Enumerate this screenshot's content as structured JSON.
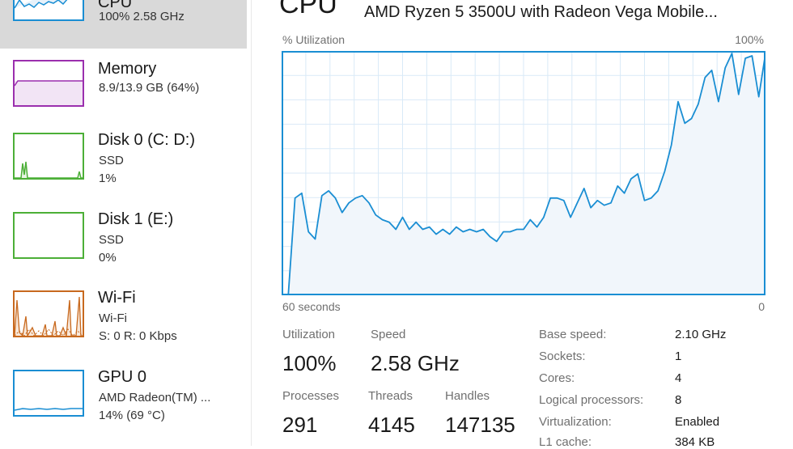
{
  "sidebar": {
    "items": [
      {
        "title": "CPU",
        "line1": "100%  2.58 GHz",
        "line2": "",
        "color": "#1a8ed3",
        "active": true
      },
      {
        "title": "Memory",
        "line1": "8.9/13.9 GB (64%)",
        "line2": "",
        "color": "#9b2fae"
      },
      {
        "title": "Disk 0 (C: D:)",
        "line1": "SSD",
        "line2": "1%",
        "color": "#4caf37"
      },
      {
        "title": "Disk 1 (E:)",
        "line1": "SSD",
        "line2": "0%",
        "color": "#4caf37"
      },
      {
        "title": "Wi-Fi",
        "line1": "Wi-Fi",
        "line2_s": "S: 0",
        "line2_r": "R: 0 Kbps",
        "color": "#c8691e"
      },
      {
        "title": "GPU 0",
        "line1": "AMD Radeon(TM) ...",
        "line2": "14%  (69 °C)",
        "color": "#1a8ed3"
      }
    ]
  },
  "header": {
    "title": "CPU",
    "model": "AMD Ryzen 5 3500U with Radeon Vega Mobile..."
  },
  "graph": {
    "top_left_label": "% Utilization",
    "top_right_label": "100%",
    "bottom_left_label": "60 seconds",
    "bottom_right_label": "0",
    "line_color": "#1a8ed3",
    "fill_color": "#f1f6fb",
    "grid_color": "#d9eaf7",
    "values": [
      0,
      0,
      40,
      42,
      26,
      23,
      41,
      43,
      40,
      34,
      38,
      40,
      41,
      38,
      33,
      31,
      30,
      27,
      32,
      27,
      30,
      27,
      28,
      25,
      27,
      25,
      28,
      26,
      27,
      26,
      27,
      24,
      22,
      26,
      26,
      27,
      27,
      31,
      28,
      32,
      40,
      40,
      39,
      32,
      38,
      44,
      36,
      39,
      37,
      38,
      45,
      42,
      48,
      50,
      39,
      40,
      43,
      51,
      62,
      80,
      71,
      73,
      79,
      90,
      93,
      80,
      94,
      100,
      83,
      98,
      99,
      82,
      100
    ]
  },
  "stats": {
    "utilization_label": "Utilization",
    "utilization_value": "100%",
    "speed_label": "Speed",
    "speed_value": "2.58 GHz",
    "processes_label": "Processes",
    "processes_value": "291",
    "threads_label": "Threads",
    "threads_value": "4145",
    "handles_label": "Handles",
    "handles_value": "147135"
  },
  "specs": [
    {
      "label": "Base speed:",
      "value": "2.10 GHz"
    },
    {
      "label": "Sockets:",
      "value": "1"
    },
    {
      "label": "Cores:",
      "value": "4"
    },
    {
      "label": "Logical processors:",
      "value": "8"
    },
    {
      "label": "Virtualization:",
      "value": "Enabled"
    },
    {
      "label": "L1 cache:",
      "value": "384 KB"
    }
  ]
}
